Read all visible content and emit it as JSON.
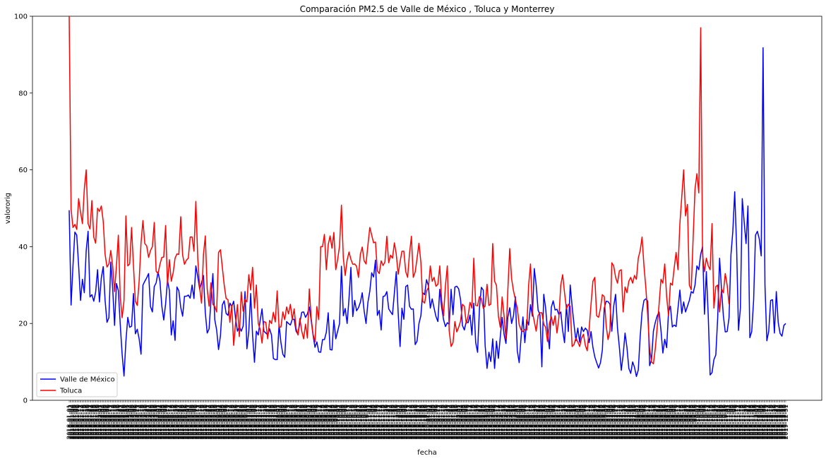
{
  "chart_data": {
    "type": "line",
    "title": "Comparación PM2.5 de Valle de México , Toluca y Monterrey",
    "xlabel": "fecha",
    "ylabel": "valororig",
    "ylim": [
      0,
      100
    ],
    "yticks": [
      0,
      20,
      40,
      60,
      80,
      100
    ],
    "grid": false,
    "legend_position": "lower-left",
    "x_tick_label_sample": "2018-01-01",
    "x_range": [
      "2018-01-01",
      "2019-12-31"
    ],
    "series": [
      {
        "name": "Valle de México",
        "color": "#0000ff",
        "values": [
          49.5,
          24.8,
          35.0,
          43.8,
          43.0,
          35.0,
          26.0,
          31.5,
          28.0,
          39.0,
          44.0,
          26.9,
          27.5,
          25.8,
          28.2,
          34.0,
          25.6,
          31.9,
          34.8,
          26.0,
          20.3,
          21.5,
          36.0,
          29.2,
          19.5,
          30.4,
          28.6,
          19.8,
          12.0,
          6.3,
          15.4,
          21.6,
          19.0,
          19.3,
          27.8,
          17.3,
          18.5,
          16.0,
          12.0,
          30.0,
          31.0,
          31.9,
          33.0,
          24.4,
          23.0,
          29.6,
          30.6,
          33.4,
          31.0,
          24.5,
          20.9,
          25.1,
          31.3,
          28.6,
          17.0,
          20.7,
          15.6,
          29.5,
          28.5,
          24.2,
          21.9,
          27.1,
          27.1,
          27.4,
          26.6,
          30.0,
          26.5,
          35.0,
          32.2,
          29.0,
          30.6,
          32.5,
          22.8,
          17.5,
          18.6,
          26.2,
          33.0,
          21.0,
          18.3,
          13.2,
          16.8,
          24.8,
          25.9,
          22.6,
          22.1,
          25.3,
          24.4,
          25.8,
          21.3,
          18.0,
          19.2,
          18.0,
          19.3,
          28.3,
          13.4,
          18.0,
          27.8,
          16.9,
          9.9,
          18.0,
          17.0,
          20.8,
          23.8,
          18.0,
          17.5,
          17.0,
          18.6,
          17.0,
          10.9,
          10.6,
          10.6,
          19.7,
          15.0,
          12.0,
          11.2,
          20.5,
          20.0,
          19.6,
          21.1,
          21.1,
          18.0,
          17.2,
          20.2,
          22.9,
          23.0,
          21.6,
          22.5,
          24.3,
          20.8,
          16.9,
          13.8,
          15.2,
          12.6,
          12.5,
          15.8,
          15.8,
          17.7,
          22.8,
          13.2,
          13.1,
          20.9,
          16.0,
          18.0,
          20.0,
          34.9,
          22.0,
          23.9,
          20.0,
          26.5,
          34.6,
          21.8,
          26.0,
          23.3,
          24.1,
          25.5,
          28.0,
          23.3,
          20.0,
          25.5,
          28.4,
          33.2,
          32.1,
          36.5,
          22.1,
          23.4,
          18.3,
          27.0,
          27.2,
          28.3,
          23.8,
          23.0,
          22.3,
          28.0,
          33.5,
          22.8,
          14.0,
          24.0,
          21.1,
          29.6,
          30.0,
          24.5,
          23.7,
          23.8,
          14.5,
          15.4,
          20.0,
          22.0,
          28.0,
          27.5,
          31.4,
          29.8,
          24.0,
          26.4,
          24.0,
          21.8,
          20.5,
          28.9,
          24.2,
          21.0,
          19.2,
          20.2,
          19.8,
          28.9,
          22.3,
          29.5,
          29.7,
          29.0,
          26.2,
          19.5,
          18.3,
          20.5,
          20.2,
          22.2,
          17.0,
          25.3,
          15.0,
          12.5,
          24.0,
          29.4,
          28.7,
          14.3,
          8.3,
          12.5,
          10.1,
          16.0,
          8.3,
          15.4,
          10.9,
          16.5,
          21.6,
          17.2,
          14.8,
          21.6,
          24.1,
          20.0,
          22.0,
          27.0,
          12.9,
          9.8,
          16.3,
          21.7,
          15.0,
          21.0,
          19.6,
          24.9,
          21.9,
          34.3,
          30.0,
          23.5,
          22.3,
          8.7,
          27.6,
          24.0,
          18.0,
          13.4,
          24.2,
          25.9,
          23.5,
          23.7,
          22.3,
          23.0,
          18.2,
          15.0,
          24.9,
          17.9,
          30.0,
          24.5,
          19.8,
          15.5,
          18.8,
          15.1,
          19.1,
          17.9,
          18.8,
          18.2,
          15.0,
          17.9,
          13.8,
          11.3,
          9.8,
          8.4,
          9.8,
          13.1,
          24.0,
          25.8,
          25.7,
          25.0,
          18.0,
          24.5,
          27.6,
          18.8,
          13.8,
          7.8,
          11.8,
          17.5,
          13.8,
          8.3,
          7.0,
          10.0,
          8.6,
          6.2,
          7.9,
          16.6,
          23.0,
          26.0,
          26.4,
          25.8,
          9.0,
          10.6,
          18.0,
          20.3,
          22.0,
          23.0,
          18.2,
          12.3,
          15.9,
          13.7,
          23.0,
          24.5,
          19.1,
          19.6,
          19.2,
          24.0,
          28.7,
          22.6,
          25.6,
          23.0,
          24.5,
          26.0,
          28.3,
          27.9,
          30.0,
          35.0,
          34.0,
          38.0,
          40.0,
          22.4,
          33.5,
          22.0,
          6.6,
          7.2,
          10.6,
          11.8,
          21.5,
          37.0,
          29.0,
          22.0,
          17.8,
          17.9,
          21.5,
          37.8,
          44.0,
          54.3,
          40.0,
          18.2,
          24.0,
          52.5,
          46.5,
          40.8,
          50.6,
          16.3,
          17.9,
          26.0,
          43.0,
          44.0,
          42.0,
          37.6,
          91.8,
          30.0,
          15.5,
          18.0,
          26.0,
          26.2,
          17.5,
          28.3,
          20.3,
          17.4,
          16.7,
          19.5,
          20.0
        ]
      },
      {
        "name": "Toluca",
        "color": "#ff0000",
        "values": [
          100.0,
          49.8,
          45.0,
          45.8,
          44.5,
          52.5,
          49.0,
          46.0,
          55.0,
          60.0,
          46.0,
          44.6,
          52.0,
          42.5,
          40.9,
          50.0,
          49.2,
          50.6,
          46.6,
          38.0,
          34.7,
          35.5,
          39.0,
          35.0,
          28.3,
          35.0,
          43.0,
          27.0,
          21.5,
          26.0,
          48.0,
          35.0,
          35.5,
          45.0,
          35.0,
          25.8,
          24.7,
          31.0,
          41.0,
          46.8,
          40.8,
          40.2,
          37.2,
          39.0,
          40.0,
          46.3,
          33.6,
          33.0,
          35.4,
          37.2,
          37.3,
          45.5,
          30.0,
          36.6,
          31.0,
          33.2,
          37.0,
          38.1,
          38.0,
          47.8,
          37.8,
          35.4,
          36.5,
          37.0,
          42.5,
          42.5,
          38.8,
          51.8,
          37.0,
          29.3,
          25.3,
          37.8,
          42.8,
          29.0,
          24.5,
          30.6,
          25.0,
          24.4,
          23.0,
          38.5,
          39.2,
          34.6,
          30.0,
          26.5,
          26.2,
          20.3,
          24.8,
          14.3,
          20.0,
          24.9,
          16.6,
          28.2,
          23.2,
          26.3,
          25.6,
          32.7,
          28.7,
          34.6,
          24.0,
          30.0,
          20.0,
          18.5,
          14.9,
          20.5,
          20.3,
          16.0,
          20.8,
          20.0,
          22.9,
          20.4,
          28.5,
          19.0,
          19.1,
          23.0,
          21.0,
          24.3,
          22.5,
          25.0,
          21.0,
          23.8,
          18.8,
          17.0,
          21.3,
          18.0,
          16.0,
          19.8,
          16.2,
          29.0,
          21.4,
          17.2,
          15.2,
          24.4,
          21.0,
          40.0,
          40.0,
          43.2,
          34.0,
          40.5,
          42.8,
          39.6,
          43.7,
          34.0,
          36.7,
          40.2,
          50.8,
          37.0,
          32.5,
          36.5,
          38.6,
          36.7,
          35.4,
          35.5,
          34.9,
          32.0,
          38.0,
          39.9,
          36.3,
          35.5,
          40.4,
          45.0,
          43.0,
          41.0,
          41.2,
          33.7,
          33.0,
          36.3,
          35.1,
          36.0,
          42.7,
          35.8,
          37.8,
          37.0,
          41.0,
          38.0,
          32.8,
          36.0,
          38.8,
          38.8,
          33.5,
          32.0,
          38.2,
          42.7,
          32.0,
          33.4,
          37.0,
          40.9,
          36.0,
          25.8,
          25.3,
          28.5,
          29.3,
          35.0,
          31.0,
          32.0,
          29.7,
          30.2,
          35.0,
          26.0,
          22.0,
          29.8,
          35.0,
          18.0,
          14.0,
          15.0,
          20.5,
          17.8,
          19.0,
          20.6,
          25.0,
          24.5,
          20.0,
          22.0,
          25.5,
          24.0,
          37.0,
          24.7,
          24.6,
          27.0,
          26.5,
          24.0,
          24.5,
          30.2,
          24.7,
          25.0,
          40.8,
          31.0,
          29.9,
          22.0,
          19.0,
          26.9,
          22.0,
          16.0,
          28.6,
          39.5,
          31.6,
          28.5,
          26.2,
          24.0,
          19.7,
          18.3,
          17.9,
          18.4,
          18.3,
          30.0,
          35.5,
          23.0,
          20.5,
          18.0,
          22.0,
          22.8,
          22.8,
          19.8,
          19.0,
          15.3,
          20.0,
          21.8,
          19.5,
          22.0,
          17.5,
          21.5,
          30.0,
          32.7,
          28.0,
          23.8,
          25.0,
          24.5,
          14.0,
          14.5,
          16.2,
          15.2,
          14.0,
          16.2,
          17.2,
          14.3,
          12.9,
          18.6,
          25.0,
          31.0,
          32.0,
          22.0,
          21.6,
          24.0,
          27.5,
          27.0,
          19.5,
          15.8,
          18.0,
          35.8,
          35.0,
          32.0,
          30.5,
          33.7,
          34.0,
          23.0,
          29.5,
          28.0,
          31.0,
          32.0,
          30.5,
          32.5,
          31.5,
          37.0,
          39.0,
          42.5,
          35.0,
          29.3,
          22.0,
          13.5,
          10.0,
          9.5,
          13.5,
          19.0,
          25.0,
          31.5,
          30.5,
          35.5,
          27.0,
          22.0,
          30.5,
          30.0,
          34.5,
          38.5,
          34.0,
          46.0,
          53.0,
          60.0,
          48.0,
          51.0,
          30.0,
          28.8,
          42.0,
          55.0,
          59.0,
          54.0,
          97.0,
          38.0,
          33.5,
          37.0,
          35.0,
          34.0,
          46.0,
          24.0,
          29.6,
          30.0,
          23.0,
          29.0,
          28.0,
          33.0,
          30.0,
          25.0
        ]
      }
    ]
  }
}
